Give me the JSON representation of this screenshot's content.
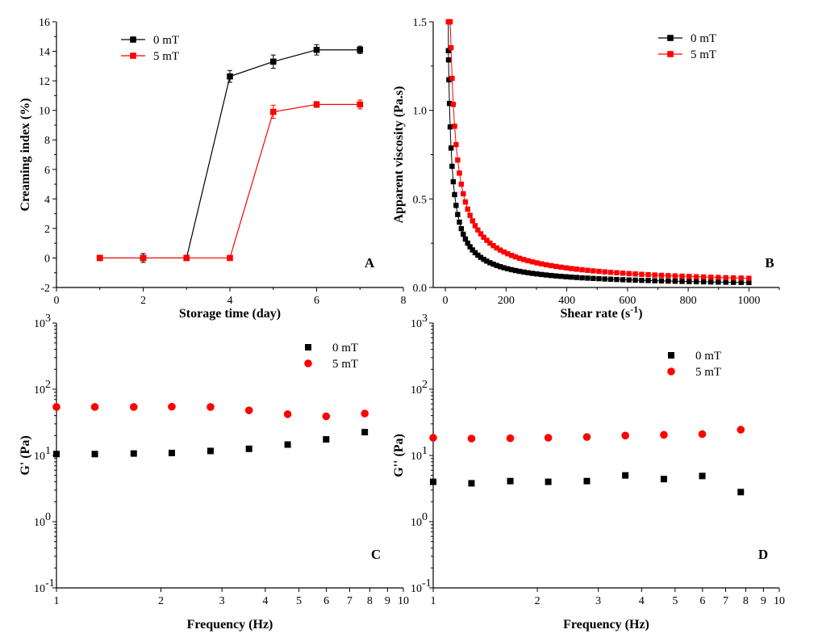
{
  "chart_data": [
    {
      "panel": "A",
      "type": "line",
      "xlabel": "Storage time (day)",
      "ylabel": "Creaming index (%)",
      "xlim": [
        0,
        8
      ],
      "ylim": [
        -2,
        16
      ],
      "xticks": [
        "0",
        "2",
        "4",
        "6",
        "8"
      ],
      "yticks": [
        "-2",
        "0",
        "2",
        "4",
        "6",
        "8",
        "10",
        "12",
        "14",
        "16"
      ],
      "legend_position": "top-left",
      "x": [
        1,
        2,
        3,
        4,
        5,
        6,
        7
      ],
      "series": [
        {
          "name": "0 mT",
          "color": "#000000",
          "marker": "square",
          "values": [
            0,
            0,
            0,
            12.3,
            13.3,
            14.1,
            14.1
          ],
          "errors": [
            0.1,
            0.3,
            0.1,
            0.4,
            0.45,
            0.35,
            0.25
          ]
        },
        {
          "name": "5 mT",
          "color": "#ff0000",
          "marker": "square",
          "values": [
            0,
            0,
            0,
            0,
            9.9,
            10.4,
            10.4
          ],
          "errors": [
            0.1,
            0.15,
            0.1,
            0.1,
            0.45,
            0.2,
            0.3
          ]
        }
      ]
    },
    {
      "panel": "B",
      "type": "scatter",
      "xlabel": "Shear rate (s",
      "xlabel_sup": "-1",
      "xlabel_end": ")",
      "ylabel": "Apparent viscosity (Pa.s)",
      "xlim": [
        -40,
        1100
      ],
      "ylim": [
        0,
        1.5
      ],
      "xticks": [
        "0",
        "200",
        "400",
        "600",
        "800",
        "1000"
      ],
      "yticks": [
        "0.0",
        "0.5",
        "1.0",
        "1.5"
      ],
      "legend_position": "top-right",
      "series": [
        {
          "name": "0 mT",
          "color": "#000000",
          "marker": "square",
          "model": {
            "x_start": 10,
            "x_end": 1000,
            "points": 70,
            "k": 9.25,
            "n": 0.16
          }
        },
        {
          "name": "5 mT",
          "color": "#ff0000",
          "marker": "square",
          "model": {
            "x_start": 10,
            "x_end": 1000,
            "points": 70,
            "k": 15.0,
            "n": 0.18
          }
        }
      ]
    },
    {
      "panel": "C",
      "type": "scatter",
      "xscale": "log",
      "yscale": "log",
      "xlabel": "Frequency (Hz)",
      "ylabel": "G' (Pa)",
      "xlim": [
        1,
        10
      ],
      "ylim": [
        0.1,
        1000
      ],
      "xticks": [
        "1",
        "2",
        "3",
        "4",
        "5",
        "6",
        "7",
        "8",
        "9",
        "10"
      ],
      "ytick_base": "10",
      "ytick_exps": [
        "-1",
        "0",
        "1",
        "2",
        "3"
      ],
      "legend_position": "top-right",
      "x": [
        1,
        1.29,
        1.67,
        2.15,
        2.78,
        3.59,
        4.64,
        5.99,
        7.74
      ],
      "series": [
        {
          "name": "0 mT",
          "color": "#000000",
          "marker": "square",
          "values": [
            10.5,
            10.5,
            10.7,
            10.9,
            11.7,
            12.6,
            14.6,
            17.5,
            22.5
          ]
        },
        {
          "name": "5 mT",
          "color": "#ff0000",
          "marker": "circle",
          "values": [
            54,
            54,
            54,
            54.5,
            54,
            48,
            42,
            39,
            43
          ]
        }
      ]
    },
    {
      "panel": "D",
      "type": "scatter",
      "xscale": "log",
      "yscale": "log",
      "xlabel": "Frequency (Hz)",
      "ylabel": "G'' (Pa)",
      "xlim": [
        1,
        10
      ],
      "ylim": [
        0.1,
        1000
      ],
      "xticks": [
        "1",
        "2",
        "3",
        "4",
        "5",
        "6",
        "7",
        "8",
        "9",
        "10"
      ],
      "ytick_base": "10",
      "ytick_exps": [
        "-1",
        "0",
        "1",
        "2",
        "3"
      ],
      "legend_position": "top-right",
      "x": [
        1,
        1.29,
        1.67,
        2.15,
        2.78,
        3.59,
        4.64,
        5.99,
        7.74
      ],
      "series": [
        {
          "name": "0 mT",
          "color": "#000000",
          "marker": "square",
          "values": [
            4.0,
            3.8,
            4.1,
            4.0,
            4.1,
            5.0,
            4.4,
            4.9,
            2.8
          ]
        },
        {
          "name": "5 mT",
          "color": "#ff0000",
          "marker": "circle",
          "values": [
            18.5,
            18,
            18.2,
            18.5,
            19,
            20,
            20.5,
            21,
            24.5
          ]
        }
      ]
    }
  ]
}
